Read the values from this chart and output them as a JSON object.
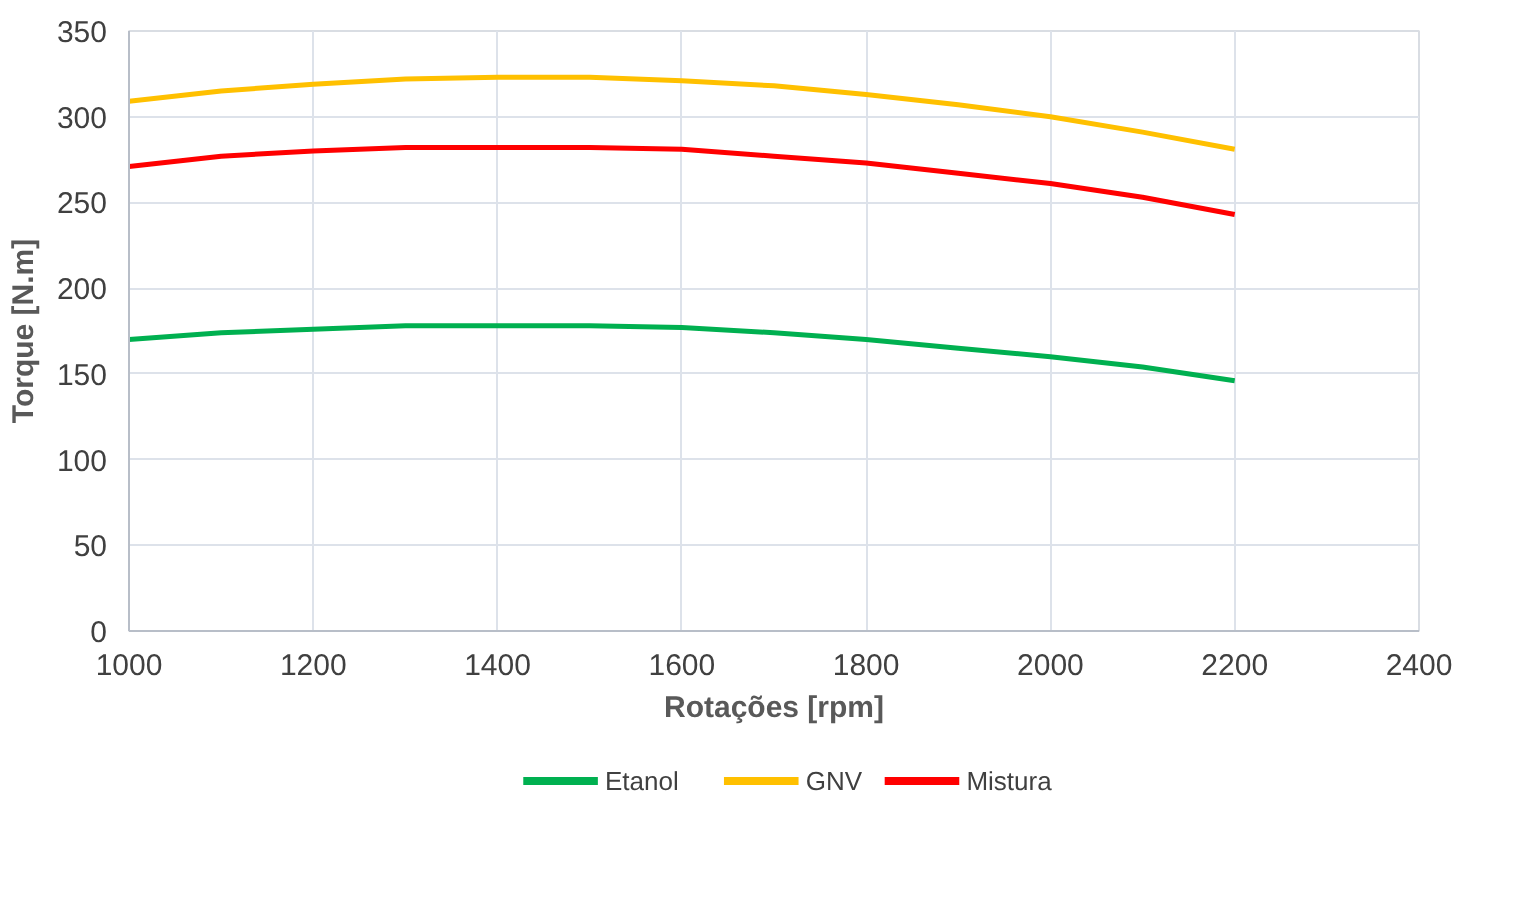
{
  "chart_data": {
    "type": "line",
    "xlabel": "Rotações [rpm]",
    "ylabel": "Torque [N.m]",
    "x": [
      1000,
      1100,
      1200,
      1300,
      1400,
      1500,
      1600,
      1700,
      1800,
      1900,
      2000,
      2100,
      2200
    ],
    "xlim": [
      1000,
      2400
    ],
    "xticks": [
      1000,
      1200,
      1400,
      1600,
      1800,
      2000,
      2200,
      2400
    ],
    "ylim": [
      0,
      350
    ],
    "yticks": [
      0,
      50,
      100,
      150,
      200,
      250,
      300,
      350
    ],
    "grid": true,
    "legend": "bottom",
    "marker": "none",
    "line_style": "solid",
    "series": [
      {
        "name": "Etanol",
        "color": "#00b050",
        "values": [
          170,
          174,
          176,
          178,
          178,
          178,
          177,
          174,
          170,
          165,
          160,
          154,
          146
        ]
      },
      {
        "name": "GNV",
        "color": "#ffc000",
        "values": [
          309,
          315,
          319,
          322,
          323,
          323,
          321,
          318,
          313,
          307,
          300,
          291,
          281
        ]
      },
      {
        "name": "Mistura",
        "color": "#ff0000",
        "values": [
          271,
          277,
          280,
          282,
          282,
          282,
          281,
          277,
          273,
          267,
          261,
          253,
          243
        ]
      }
    ]
  }
}
